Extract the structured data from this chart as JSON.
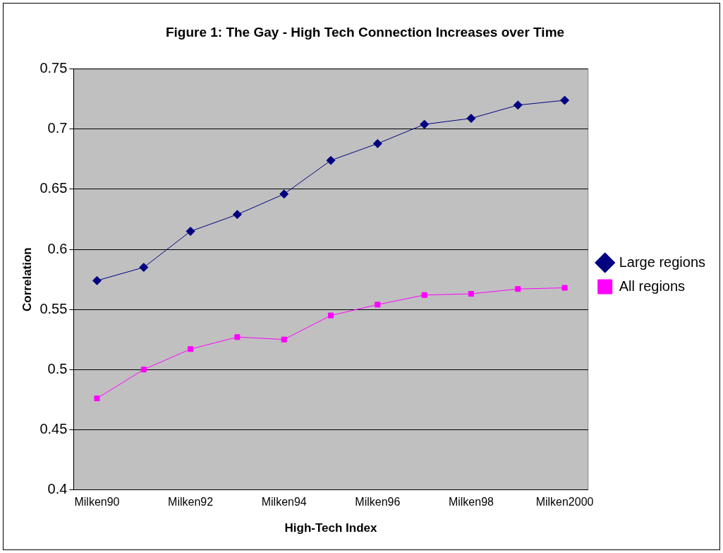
{
  "chart_data": {
    "type": "line",
    "title": "Figure 1: The Gay - High Tech Connection Increases over Time",
    "xlabel": "High-Tech Index",
    "ylabel": "Correlation",
    "categories": [
      "Milken90",
      null,
      "Milken92",
      null,
      "Milken94",
      null,
      "Milken96",
      null,
      "Milken98",
      null,
      "Milken2000"
    ],
    "series": [
      {
        "name": "Large regions",
        "color": "#000080",
        "marker": "diamond",
        "values": [
          0.574,
          0.585,
          0.615,
          0.629,
          0.646,
          0.674,
          0.688,
          0.704,
          0.709,
          0.72,
          0.724
        ]
      },
      {
        "name": "All regions",
        "color": "#ff00ff",
        "marker": "square",
        "values": [
          0.476,
          0.5,
          0.517,
          0.527,
          0.525,
          0.545,
          0.554,
          0.562,
          0.563,
          0.567,
          0.568
        ]
      }
    ],
    "ylim": [
      0.4,
      0.75
    ],
    "yticks": [
      0.4,
      0.45,
      0.5,
      0.55,
      0.6,
      0.65,
      0.7,
      0.75
    ],
    "grid": "y",
    "legend": "right"
  }
}
